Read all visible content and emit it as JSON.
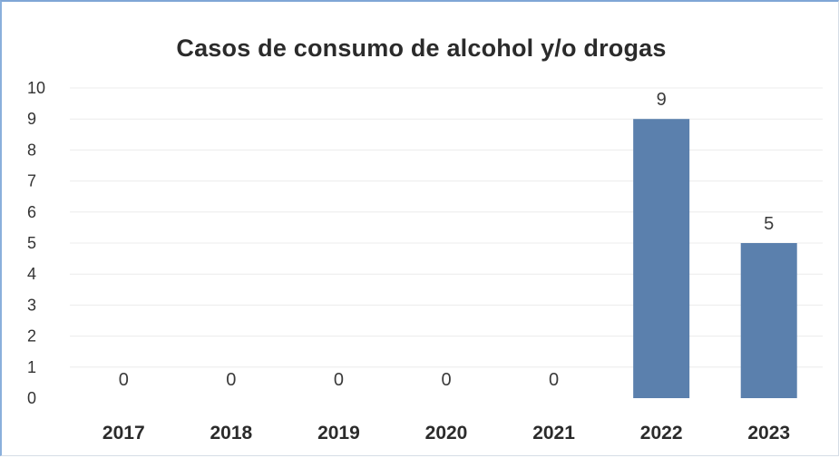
{
  "chart_data": {
    "type": "bar",
    "title": "Casos de consumo de alcohol y/o drogas",
    "xlabel": "",
    "ylabel": "",
    "categories": [
      "2017",
      "2018",
      "2019",
      "2020",
      "2021",
      "2022",
      "2023"
    ],
    "values": [
      0,
      0,
      0,
      0,
      0,
      9,
      5
    ],
    "ylim": [
      0,
      10
    ],
    "yticks": [
      "0",
      "1",
      "2",
      "3",
      "4",
      "5",
      "6",
      "7",
      "8",
      "9",
      "10"
    ],
    "data_labels": [
      "0",
      "0",
      "0",
      "0",
      "0",
      "9",
      "5"
    ],
    "grid": true,
    "legend": "none",
    "bar_color": "#5b80ad"
  }
}
